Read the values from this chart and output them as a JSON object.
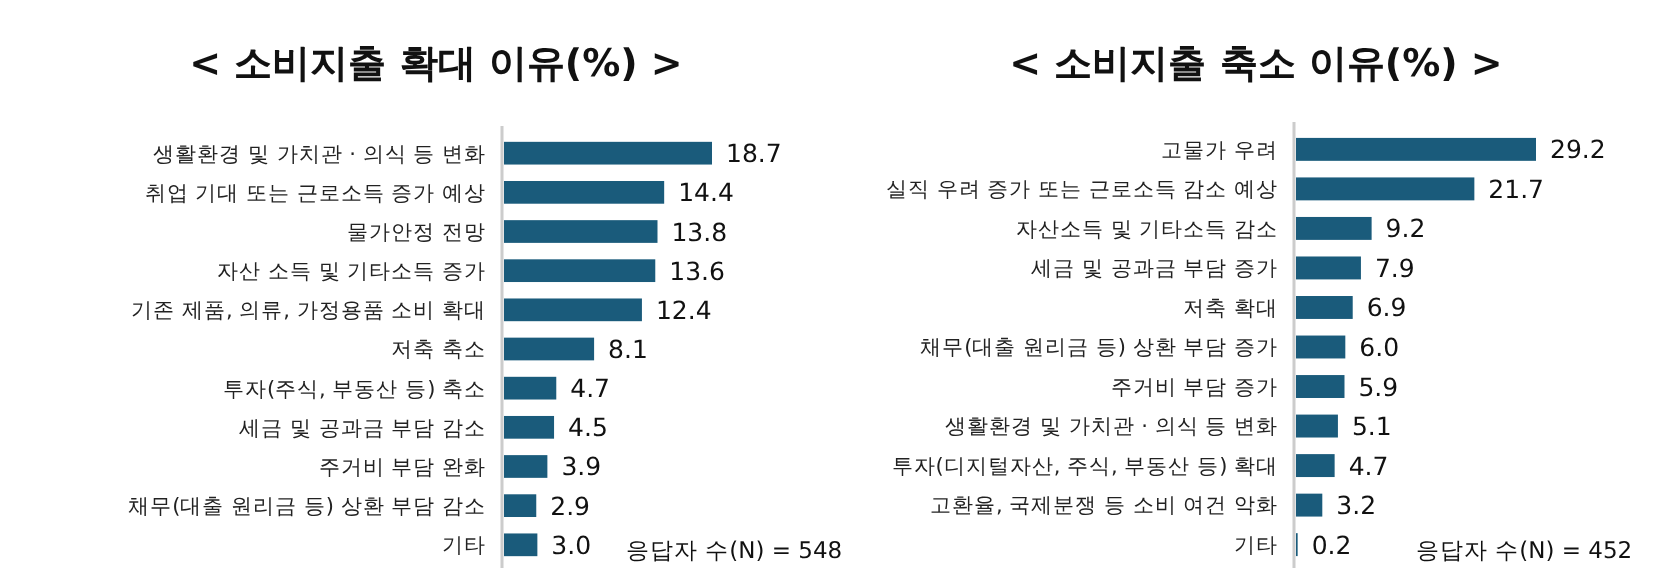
{
  "chart_data": [
    {
      "type": "bar",
      "orientation": "horizontal",
      "title": "< 소비지출 확대 이유(%) >",
      "categories": [
        "생활환경 및 가치관 · 의식 등 변화",
        "취업 기대 또는 근로소득 증가 예상",
        "물가안정 전망",
        "자산 소득 및 기타소득 증가",
        "기존 제품, 의류, 가정용품 소비 확대",
        "저축 축소",
        "투자(주식, 부동산 등) 축소",
        "세금 및 공과금 부담 감소",
        "주거비 부담 완화",
        "채무(대출 원리금 등) 상환 부담 감소",
        "기타"
      ],
      "values": [
        18.7,
        14.4,
        13.8,
        13.6,
        12.4,
        8.1,
        4.7,
        4.5,
        3.9,
        2.9,
        3.0
      ],
      "value_labels": [
        "18.7",
        "14.4",
        "13.8",
        "13.6",
        "12.4",
        "8.1",
        "4.7",
        "4.5",
        "3.9",
        "2.9",
        "3.0"
      ],
      "color": "#1a5b7b",
      "tick_labels": "y",
      "annotations": [
        "응답자 수(N) = 548"
      ]
    },
    {
      "type": "bar",
      "orientation": "horizontal",
      "title": "< 소비지출 축소 이유(%) >",
      "categories": [
        "고물가 우려",
        "실직 우려 증가 또는 근로소득 감소 예상",
        "자산소득 및 기타소득 감소",
        "세금 및 공과금 부담 증가",
        "저축 확대",
        "채무(대출 원리금 등) 상환 부담 증가",
        "주거비 부담 증가",
        "생활환경 및 가치관 · 의식 등 변화",
        "투자(디지털자산, 주식, 부동산 등) 확대",
        "고환율, 국제분쟁 등 소비 여건 악화",
        "기타"
      ],
      "values": [
        29.2,
        21.7,
        9.2,
        7.9,
        6.9,
        6.0,
        5.9,
        5.1,
        4.7,
        3.2,
        0.2
      ],
      "value_labels": [
        "29.2",
        "21.7",
        "9.2",
        "7.9",
        "6.9",
        "6.0",
        "5.9",
        "5.1",
        "4.7",
        "3.2",
        "0.2"
      ],
      "color": "#1a5b7b",
      "tick_labels": "y",
      "annotations": [
        "응답자 수(N) = 452"
      ]
    }
  ]
}
